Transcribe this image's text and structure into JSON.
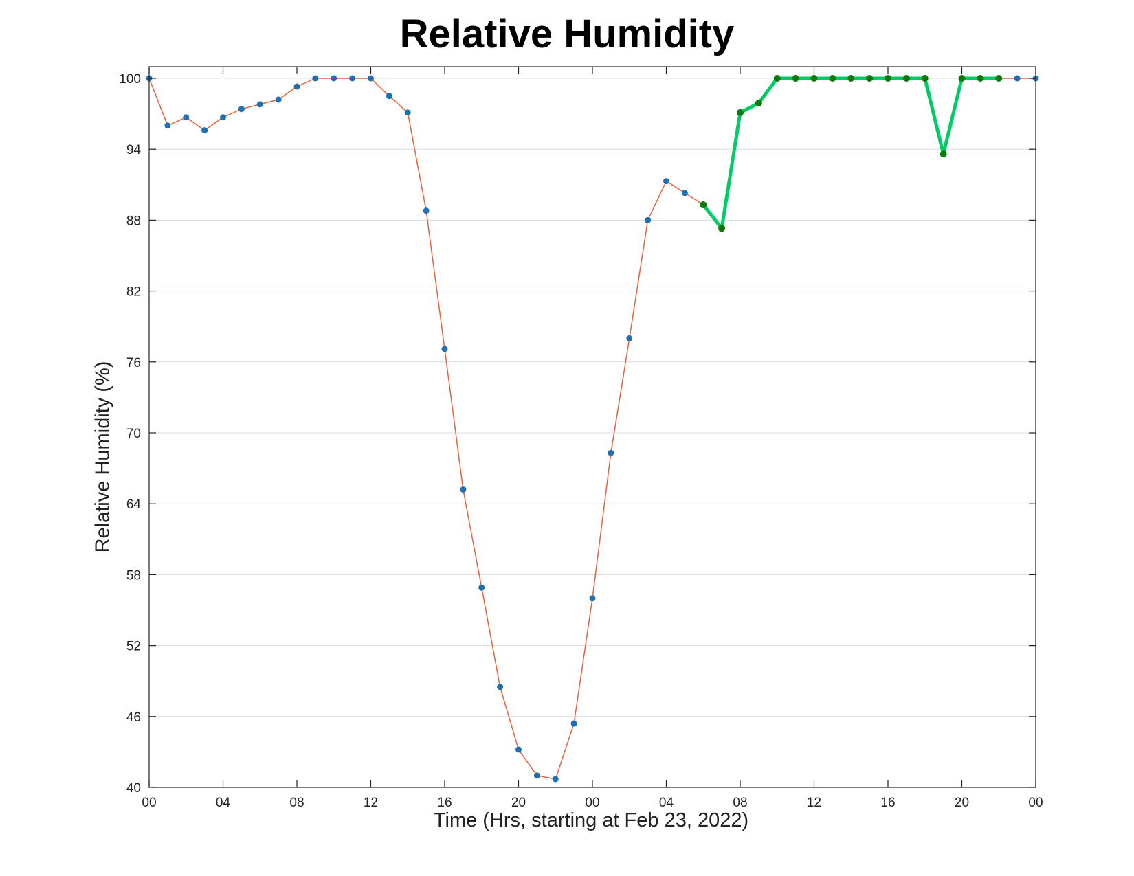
{
  "chart_data": {
    "type": "line",
    "title": "Relative Humidity",
    "xlabel": "Time (Hrs, starting at Feb 23, 2022)",
    "ylabel": "Relative Humidity (%)",
    "x_unit": "hour",
    "x": [
      0,
      1,
      2,
      3,
      4,
      5,
      6,
      7,
      8,
      9,
      10,
      11,
      12,
      13,
      14,
      15,
      16,
      17,
      18,
      19,
      20,
      21,
      22,
      23,
      24,
      25,
      26,
      27,
      28,
      29,
      30,
      31,
      32,
      33,
      34,
      35,
      36,
      37,
      38,
      39,
      40,
      41,
      42,
      43,
      44,
      45,
      46,
      47,
      48
    ],
    "xlim": [
      0,
      48
    ],
    "ylim": [
      40,
      101
    ],
    "x_ticks": [
      0,
      4,
      8,
      12,
      16,
      20,
      24,
      28,
      32,
      36,
      40,
      44,
      48
    ],
    "x_tick_labels": [
      "00",
      "04",
      "08",
      "12",
      "16",
      "20",
      "00",
      "04",
      "08",
      "12",
      "16",
      "20",
      "00"
    ],
    "y_ticks": [
      40,
      46,
      52,
      58,
      64,
      70,
      76,
      82,
      88,
      94,
      100
    ],
    "grid": "horizontal",
    "series": [
      {
        "color": "#e8613a",
        "marker_color": "#1f6fb2",
        "values": [
          100,
          96,
          96.7,
          95.6,
          96.7,
          97.4,
          97.8,
          98.2,
          99.3,
          100,
          100,
          100,
          100,
          98.5,
          97.1,
          88.8,
          77.1,
          65.2,
          56.9,
          48.5,
          43.2,
          41.0,
          40.7,
          45.4,
          56.0,
          68.3,
          78.0,
          88.0,
          91.3,
          90.3,
          89.3,
          87.3,
          97.1,
          97.9,
          100,
          100,
          100,
          100,
          100,
          100,
          100,
          100,
          100,
          93.6,
          100,
          100,
          100,
          100,
          100
        ]
      },
      {
        "color": "#00cc66",
        "marker_color": "#0a7a0a",
        "x": [
          30,
          31,
          32,
          33,
          34,
          35,
          36,
          37,
          38,
          39,
          40,
          41,
          42,
          43,
          44,
          45,
          46
        ],
        "values": [
          89.3,
          87.3,
          97.1,
          97.9,
          100,
          100,
          100,
          100,
          100,
          100,
          100,
          100,
          100,
          93.6,
          100,
          100,
          100
        ]
      }
    ]
  }
}
